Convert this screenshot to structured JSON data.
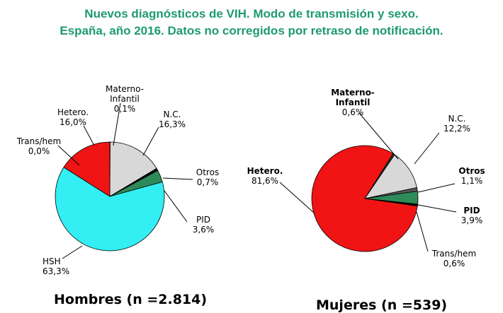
{
  "title": {
    "line1": "Nuevos diagnósticos de VIH. Modo de transmisión y sexo.",
    "line2": "España, año 2016. Datos no corregidos por retraso de notificación.",
    "color": "#1e9a6e"
  },
  "chart_data": [
    {
      "type": "pie",
      "caption": "Hombres (n =2.814)",
      "slices": [
        {
          "label": [
            "Materno-",
            "Infantil"
          ],
          "value_text": "0,1%",
          "value": 0.1,
          "color": "#1e3a2a"
        },
        {
          "label": [
            "N.C."
          ],
          "value_text": "16,3%",
          "value": 16.3,
          "color": "#d8d8d8"
        },
        {
          "label": [
            "Otros"
          ],
          "value_text": "0,7%",
          "value": 0.7,
          "color": "#000000"
        },
        {
          "label": [
            "PID"
          ],
          "value_text": "3,6%",
          "value": 3.6,
          "color": "#2f8a5a"
        },
        {
          "label": [
            "HSH"
          ],
          "value_text": "63,3%",
          "value": 63.3,
          "color": "#33eef2"
        },
        {
          "label": [
            "Trans/hem"
          ],
          "value_text": "0,0%",
          "value": 0.0,
          "color": "#000000"
        },
        {
          "label": [
            "Hetero."
          ],
          "value_text": "16,0%",
          "value": 16.0,
          "color": "#f01414"
        }
      ]
    },
    {
      "type": "pie",
      "caption": "Mujeres (n =539)",
      "slices": [
        {
          "label": [
            "Materno-",
            "Infantil"
          ],
          "value_text": "0,6%",
          "value": 0.6,
          "color": "#1e3a2a"
        },
        {
          "label": [
            "N.C."
          ],
          "value_text": "12,2%",
          "value": 12.2,
          "color": "#d8d8d8"
        },
        {
          "label": [
            "Otros"
          ],
          "value_text": "1,1%",
          "value": 1.1,
          "color": "#555555"
        },
        {
          "label": [
            "PID"
          ],
          "value_text": "3,9%",
          "value": 3.9,
          "color": "#2f8a5a"
        },
        {
          "label": [
            "Trans/hem"
          ],
          "value_text": "0,6%",
          "value": 0.6,
          "color": "#000000"
        },
        {
          "label": [
            "Hetero."
          ],
          "value_text": "81,6%",
          "value": 81.6,
          "color": "#f01414"
        }
      ]
    }
  ]
}
